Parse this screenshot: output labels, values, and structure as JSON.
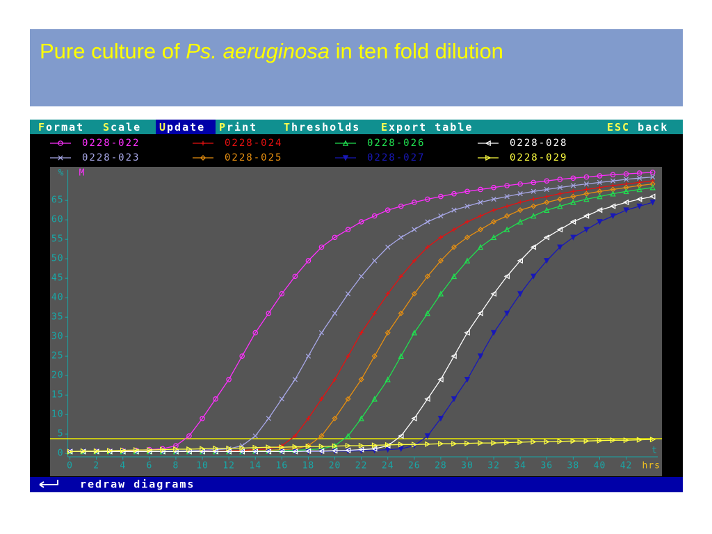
{
  "slide": {
    "title_parts": [
      "Pure culture of ",
      "Ps. aeruginosa",
      " in ten fold dilution"
    ]
  },
  "menu": {
    "items": [
      {
        "hot": "F",
        "rest": "ormat"
      },
      {
        "hot": "S",
        "rest": "cale"
      },
      {
        "hot": "U",
        "rest": "pdate"
      },
      {
        "hot": "P",
        "rest": "rint"
      },
      {
        "hot": "T",
        "rest": "hresholds"
      },
      {
        "hot": "E",
        "rest": "xport table"
      },
      {
        "hot": "ESC",
        "rest": " back"
      }
    ],
    "selected": 2
  },
  "status": "redraw diagrams",
  "chart_data": {
    "type": "line",
    "ylabel": "%",
    "ylabel_unit": "M",
    "xlabel": "hrs",
    "xlabel_top": "t",
    "x": [
      0,
      1,
      2,
      3,
      4,
      5,
      6,
      7,
      8,
      9,
      10,
      11,
      12,
      13,
      14,
      15,
      16,
      17,
      18,
      19,
      20,
      21,
      22,
      23,
      24,
      25,
      26,
      27,
      28,
      29,
      30,
      31,
      32,
      33,
      34,
      35,
      36,
      37,
      38,
      39,
      40,
      41,
      42,
      43,
      44
    ],
    "xlim": [
      -1.5,
      44.7
    ],
    "ylim": [
      -0.5,
      73.6
    ],
    "xticks": [
      0,
      2,
      4,
      6,
      8,
      10,
      12,
      14,
      16,
      18,
      20,
      22,
      24,
      26,
      28,
      30,
      32,
      34,
      36,
      38,
      40,
      42
    ],
    "yticks": [
      0,
      5,
      10,
      15,
      20,
      25,
      30,
      35,
      40,
      45,
      50,
      55,
      60,
      65
    ],
    "threshold": 3.8,
    "threshold_color": "#f0f000",
    "series": [
      {
        "name": "0228-022",
        "color": "#ff30ff",
        "marker": "circle",
        "values": [
          0.5,
          0.5,
          0.6,
          0.6,
          0.7,
          0.8,
          1.0,
          1.2,
          2.0,
          4.5,
          9,
          14,
          19,
          25,
          31,
          36,
          41,
          45.5,
          49.5,
          53,
          55.5,
          57.5,
          59.5,
          61,
          62.5,
          63.5,
          64.5,
          65.3,
          66,
          66.7,
          67.3,
          67.8,
          68.3,
          68.8,
          69.2,
          69.6,
          70,
          70.4,
          70.7,
          71,
          71.3,
          71.6,
          71.8,
          72,
          72.2
        ]
      },
      {
        "name": "0228-023",
        "color": "#a8a8e8",
        "marker": "x",
        "values": [
          0.5,
          0.5,
          0.5,
          0.5,
          0.5,
          0.5,
          0.5,
          0.6,
          0.6,
          0.7,
          0.8,
          1.0,
          1.2,
          2.0,
          4.5,
          9,
          14,
          19,
          25,
          31,
          36,
          41,
          45.5,
          49.5,
          53,
          55.5,
          57.5,
          59.5,
          61,
          62.5,
          63.5,
          64.5,
          65.3,
          66,
          66.7,
          67.3,
          67.8,
          68.3,
          68.8,
          69.2,
          69.6,
          70,
          70.4,
          70.7,
          71
        ]
      },
      {
        "name": "0228-024",
        "color": "#e81010",
        "marker": "plus",
        "values": [
          0.5,
          0.5,
          0.5,
          0.5,
          0.5,
          0.5,
          0.5,
          0.5,
          0.5,
          0.5,
          0.6,
          0.6,
          0.7,
          0.8,
          1.0,
          1.2,
          2.0,
          4.5,
          9,
          14,
          19,
          25,
          31,
          36,
          41,
          45.5,
          49.5,
          53,
          55.5,
          57.5,
          59.5,
          61,
          62.5,
          63.5,
          64.5,
          65.3,
          66,
          66.7,
          67.3,
          67.8,
          68.3,
          68.8,
          69.2,
          69.6,
          70
        ]
      },
      {
        "name": "0228-025",
        "color": "#e89010",
        "marker": "diamond",
        "values": [
          0.5,
          0.5,
          0.5,
          0.5,
          0.5,
          0.5,
          0.5,
          0.5,
          0.5,
          0.5,
          0.5,
          0.5,
          0.6,
          0.6,
          0.7,
          0.8,
          1.0,
          1.2,
          2.0,
          4.5,
          9,
          14,
          19,
          25,
          31,
          36,
          41,
          45.5,
          49.5,
          53,
          55.5,
          57.5,
          59.5,
          61,
          62.5,
          63.5,
          64.5,
          65.3,
          66,
          66.7,
          67.3,
          67.8,
          68.3,
          68.8,
          69.2
        ]
      },
      {
        "name": "0228-026",
        "color": "#20e050",
        "marker": "tri-up",
        "values": [
          0.5,
          0.5,
          0.5,
          0.5,
          0.5,
          0.5,
          0.5,
          0.5,
          0.5,
          0.5,
          0.5,
          0.5,
          0.5,
          0.5,
          0.6,
          0.6,
          0.7,
          0.8,
          1.0,
          1.2,
          2.0,
          4.5,
          9,
          14,
          19,
          25,
          31,
          36,
          41,
          45.5,
          49.5,
          53,
          55.5,
          57.5,
          59.5,
          61,
          62.5,
          63.5,
          64.5,
          65.3,
          66,
          66.7,
          67.3,
          67.8,
          68.3
        ]
      },
      {
        "name": "0228-027",
        "color": "#1818b8",
        "marker": "tri-down",
        "values": [
          0.5,
          0.5,
          0.5,
          0.5,
          0.5,
          0.5,
          0.5,
          0.5,
          0.5,
          0.5,
          0.5,
          0.5,
          0.5,
          0.5,
          0.5,
          0.5,
          0.5,
          0.5,
          0.5,
          0.5,
          0.6,
          0.6,
          0.7,
          0.8,
          1.0,
          1.2,
          2.0,
          4.5,
          9,
          14,
          19,
          25,
          31,
          36,
          41,
          45.5,
          49.5,
          53,
          55.5,
          57.5,
          59.5,
          61,
          62.5,
          63.5,
          64.5
        ]
      },
      {
        "name": "0228-028",
        "color": "#ffffff",
        "marker": "tri-left",
        "values": [
          0.5,
          0.5,
          0.5,
          0.5,
          0.5,
          0.5,
          0.5,
          0.5,
          0.5,
          0.5,
          0.5,
          0.5,
          0.5,
          0.5,
          0.5,
          0.5,
          0.5,
          0.5,
          0.6,
          0.6,
          0.7,
          0.8,
          1.0,
          1.2,
          2.0,
          4.5,
          9,
          14,
          19,
          25,
          31,
          36,
          41,
          45.5,
          49.5,
          53,
          55.5,
          57.5,
          59.5,
          61,
          62.5,
          63.5,
          64.5,
          65.3,
          66
        ]
      },
      {
        "name": "0228-029",
        "color": "#ffff40",
        "marker": "tri-right",
        "values": [
          0.5,
          0.6,
          0.6,
          0.7,
          0.8,
          0.9,
          0.9,
          1.0,
          1.1,
          1.1,
          1.2,
          1.3,
          1.3,
          1.4,
          1.5,
          1.6,
          1.6,
          1.7,
          1.8,
          1.8,
          1.9,
          2.0,
          2.0,
          2.1,
          2.2,
          2.3,
          2.3,
          2.4,
          2.5,
          2.5,
          2.6,
          2.7,
          2.7,
          2.8,
          2.9,
          3.0,
          3.0,
          3.1,
          3.2,
          3.2,
          3.3,
          3.4,
          3.4,
          3.5,
          3.6
        ]
      }
    ]
  }
}
